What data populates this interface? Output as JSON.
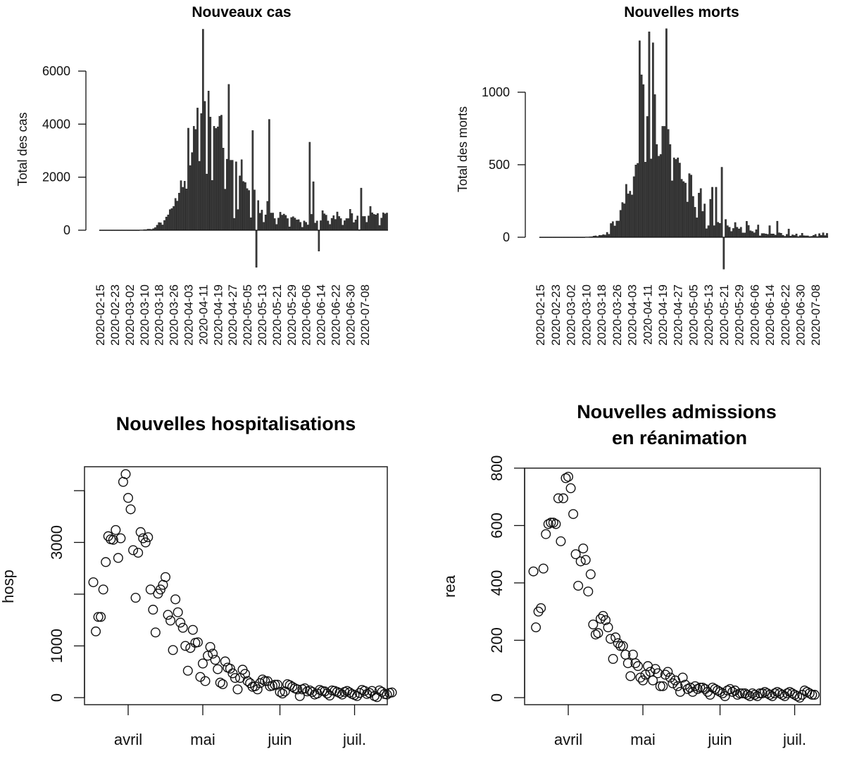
{
  "chart_data": [
    {
      "id": "cases",
      "type": "bar",
      "title": "Nouveaux cas",
      "xlabel": "",
      "ylabel": "Total des cas",
      "ylim": [
        -1500,
        7600
      ],
      "yticks": [
        0,
        2000,
        4000,
        6000
      ],
      "start_date": "2020-02-15",
      "xtick_labels": [
        "2020-02-15",
        "2020-02-23",
        "2020-03-02",
        "2020-03-10",
        "2020-03-18",
        "2020-03-26",
        "2020-04-03",
        "2020-04-11",
        "2020-04-19",
        "2020-04-27",
        "2020-05-05",
        "2020-05-13",
        "2020-05-21",
        "2020-05-29",
        "2020-06-06",
        "2020-06-14",
        "2020-06-22",
        "2020-06-30",
        "2020-07-08"
      ],
      "values": [
        0,
        0,
        0,
        0,
        0,
        0,
        0,
        0,
        0,
        0,
        0,
        0,
        0,
        0,
        0,
        0,
        0,
        0,
        0,
        0,
        0,
        0,
        10,
        10,
        20,
        20,
        40,
        40,
        30,
        60,
        100,
        190,
        290,
        280,
        200,
        370,
        500,
        580,
        780,
        820,
        900,
        1200,
        1100,
        1400,
        1870,
        1620,
        1850,
        1560,
        3850,
        2440,
        2930,
        3920,
        3800,
        4610,
        2600,
        4400,
        7580,
        4860,
        2120,
        5250,
        4270,
        1880,
        3920,
        3840,
        3900,
        4300,
        4340,
        3100,
        1550,
        2680,
        5500,
        2640,
        2640,
        450,
        2580,
        780,
        2050,
        2660,
        1840,
        1800,
        1570,
        1500,
        470,
        3760,
        1520,
        -1400,
        1120,
        640,
        760,
        300,
        580,
        1090,
        4180,
        650,
        650,
        440,
        220,
        460,
        680,
        570,
        610,
        560,
        440,
        130,
        480,
        510,
        460,
        390,
        400,
        300,
        110,
        350,
        300,
        200,
        3320,
        600,
        1830,
        270,
        350,
        -790,
        360,
        740,
        620,
        570,
        350,
        220,
        450,
        550,
        410,
        690,
        520,
        440,
        190,
        360,
        440,
        440,
        790,
        630,
        290,
        390,
        540,
        20,
        1590,
        520,
        520,
        300,
        540,
        900,
        660,
        600,
        580,
        630,
        180,
        460,
        660,
        620,
        650
      ],
      "bar_color": "#3a3a3a"
    },
    {
      "id": "deaths",
      "type": "bar",
      "title": "Nouvelles morts",
      "xlabel": "",
      "ylabel": "Total des morts",
      "ylim": [
        -220,
        1440
      ],
      "yticks": [
        0,
        500,
        1000
      ],
      "start_date": "2020-02-15",
      "xtick_labels": [
        "2020-02-15",
        "2020-02-23",
        "2020-03-02",
        "2020-03-10",
        "2020-03-18",
        "2020-03-26",
        "2020-04-03",
        "2020-04-11",
        "2020-04-19",
        "2020-04-27",
        "2020-05-05",
        "2020-05-13",
        "2020-05-21",
        "2020-05-29",
        "2020-06-06",
        "2020-06-14",
        "2020-06-22",
        "2020-06-30",
        "2020-07-08"
      ],
      "values": [
        0,
        0,
        0,
        0,
        0,
        0,
        0,
        0,
        0,
        0,
        0,
        0,
        0,
        0,
        0,
        0,
        0,
        0,
        0,
        0,
        0,
        0,
        0,
        0,
        2,
        2,
        3,
        4,
        8,
        10,
        6,
        14,
        13,
        18,
        16,
        34,
        21,
        95,
        108,
        78,
        112,
        112,
        186,
        240,
        231,
        365,
        299,
        318,
        292,
        418,
        499,
        510,
        1355,
        1120,
        1053,
        518,
        833,
        1417,
        540,
        1341,
        984,
        640,
        559,
        571,
        765,
        765,
        1438,
        744,
        640,
        389,
        548,
        537,
        548,
        512,
        400,
        384,
        374,
        243,
        439,
        429,
        282,
        207,
        134,
        305,
        336,
        178,
        230,
        59,
        80,
        262,
        345,
        80,
        345,
        103,
        96,
        483,
        -220,
        123,
        80,
        69,
        40,
        61,
        102,
        69,
        58,
        69,
        30,
        30,
        110,
        82,
        45,
        40,
        31,
        52,
        85,
        10,
        26,
        26,
        23,
        20,
        80,
        23,
        23,
        15,
        111,
        31,
        28,
        14,
        7,
        20,
        57,
        8,
        17,
        13,
        23,
        5,
        12,
        28,
        11,
        10,
        10,
        5,
        7,
        13,
        20,
        5,
        25,
        13,
        31,
        12,
        27
      ]
    },
    {
      "id": "hosp",
      "type": "scatter",
      "title": "Nouvelles hospitalisations",
      "xlabel": "",
      "ylabel": "hosp",
      "ylim": [
        -140,
        4450
      ],
      "yticks": [
        0,
        1000,
        2000,
        3000,
        4000
      ],
      "ytick_labels": [
        "0",
        "1000",
        "",
        "3000",
        ""
      ],
      "xticks": [
        "2020-04-01",
        "2020-05-01",
        "2020-06-01",
        "2020-07-01"
      ],
      "xtick_labels": [
        "avril",
        "mai",
        "juin",
        "juil."
      ],
      "x_start": "2020-03-18",
      "x_range_days": [
        -4,
        118
      ],
      "values": [
        2230,
        1280,
        1560,
        1560,
        2090,
        2620,
        3120,
        3060,
        3050,
        3240,
        2700,
        3080,
        4170,
        4320,
        3860,
        3640,
        2850,
        1930,
        2800,
        3200,
        3080,
        3000,
        3100,
        2090,
        1700,
        1260,
        2010,
        2090,
        2180,
        2330,
        1600,
        1490,
        920,
        1900,
        1650,
        1450,
        1350,
        1000,
        520,
        960,
        1310,
        1060,
        1070,
        400,
        660,
        320,
        810,
        980,
        850,
        730,
        550,
        290,
        260,
        700,
        580,
        560,
        470,
        380,
        160,
        380,
        540,
        460,
        320,
        280,
        210,
        220,
        160,
        280,
        350,
        320,
        320,
        220,
        230,
        250,
        250,
        110,
        80,
        120,
        260,
        240,
        210,
        180,
        160,
        30,
        160,
        180,
        120,
        140,
        110,
        60,
        80,
        150,
        130,
        120,
        80,
        40,
        140,
        130,
        110,
        90,
        60,
        110,
        130,
        100,
        70,
        50,
        30,
        90,
        150,
        130,
        70,
        90,
        130,
        30,
        10,
        140,
        110,
        70,
        60,
        90,
        100
      ]
    },
    {
      "id": "rea",
      "type": "scatter",
      "title": "Nouvelles admissions\nen réanimation",
      "title_lines": [
        "Nouvelles admissions",
        "en réanimation"
      ],
      "xlabel": "",
      "ylabel": "rea",
      "ylim": [
        -25,
        825
      ],
      "yticks": [
        0,
        200,
        400,
        600,
        800
      ],
      "ytick_labels": [
        "0",
        "200",
        "400",
        "600",
        "800"
      ],
      "xticks": [
        "2020-04-01",
        "2020-05-01",
        "2020-06-01",
        "2020-07-01"
      ],
      "xtick_labels": [
        "avril",
        "mai",
        "juin",
        "juil."
      ],
      "x_start": "2020-03-18",
      "x_range_days": [
        -4,
        118
      ],
      "values": [
        440,
        245,
        300,
        312,
        450,
        570,
        605,
        610,
        610,
        605,
        695,
        545,
        695,
        765,
        770,
        730,
        640,
        500,
        390,
        475,
        520,
        480,
        370,
        430,
        255,
        220,
        225,
        275,
        285,
        270,
        245,
        205,
        135,
        210,
        190,
        180,
        180,
        150,
        120,
        75,
        150,
        120,
        110,
        70,
        60,
        80,
        110,
        90,
        60,
        100,
        85,
        40,
        40,
        80,
        90,
        70,
        50,
        60,
        40,
        20,
        70,
        45,
        30,
        35,
        20,
        40,
        30,
        35,
        35,
        30,
        20,
        10,
        35,
        30,
        25,
        20,
        15,
        5,
        25,
        30,
        20,
        25,
        10,
        15,
        15,
        15,
        10,
        5,
        15,
        10,
        5,
        15,
        15,
        20,
        15,
        10,
        5,
        15,
        20,
        15,
        10,
        5,
        15,
        20,
        15,
        10,
        5,
        0,
        10,
        25,
        20,
        15,
        10,
        10
      ]
    }
  ]
}
